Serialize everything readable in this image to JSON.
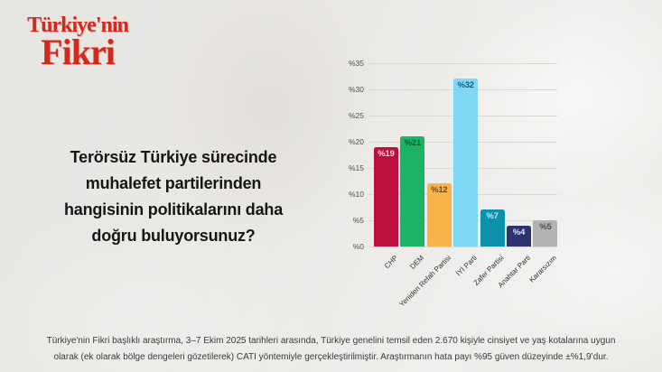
{
  "logo": {
    "line1": "Türkiye'nin",
    "line2": "Fikri",
    "color": "#d2291c"
  },
  "question": {
    "lines": [
      "Terörsüz Türkiye sürecinde",
      "muhalefet partilerinden",
      "hangisinin politikalarını daha",
      "doğru buluyorsunuz?"
    ]
  },
  "chart_data": {
    "type": "bar",
    "title": "",
    "xlabel": "",
    "ylabel": "",
    "categories": [
      "CHP",
      "DEM",
      "Yeniden Refah Partisi",
      "İYİ Parti",
      "Zafer Partisi",
      "Anahtar Parti",
      "Kararsızım"
    ],
    "values": [
      19,
      21,
      12,
      32,
      7,
      4,
      5
    ],
    "value_labels": [
      "%19",
      "%21",
      "%12",
      "%32",
      "%7",
      "%4",
      "%5"
    ],
    "bar_colors": [
      "#bb0f3d",
      "#1cb464",
      "#f8b34b",
      "#7ed7f4",
      "#0d90aa",
      "#2c3270",
      "#b2b2b0"
    ],
    "value_label_colors": [
      "#f6dde3",
      "#0d5c31",
      "#6e4d15",
      "#1f5c77",
      "#c9e9f1",
      "#e4e4f0",
      "#4f4f4f"
    ],
    "ylim": [
      0,
      35
    ],
    "tick_step": 5,
    "y_ticks": [
      "%0",
      "%5",
      "%10",
      "%15",
      "%20",
      "%25",
      "%30",
      "%35"
    ],
    "grid": true,
    "grid_color": "#d9d7d3",
    "legend": false
  },
  "footer": {
    "lines": [
      "Türkiye'nin Fikri başlıklı araştırma, 3–7 Ekim 2025 tarihleri arasında, Türkiye genelini temsil eden 2.670 kişiyle cinsiyet ve yaş kotalarına uygun",
      "olarak (ek olarak bölge dengeleri gözetilerek) CATI yöntemiyle gerçekleştirilmiştir. Araştırmanın hata payı %95 güven düzeyinde ±%1,9’dur."
    ]
  }
}
